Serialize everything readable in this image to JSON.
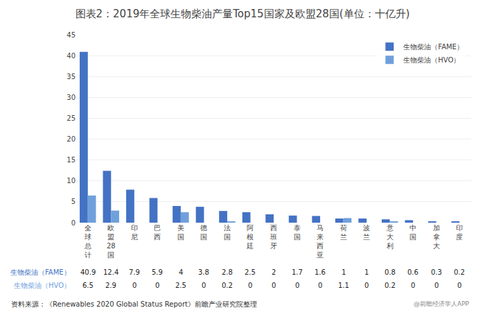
{
  "chart_data": {
    "type": "bar",
    "title": "图表2：2019年全球生物柴油产量Top15国家及欧盟28国(单位：十亿升)",
    "categories": [
      "全\n球\n总\n计",
      "欧\n盟\n28\n国",
      "印\n尼",
      "巴\n西",
      "美\n国",
      "德\n国",
      "法\n国",
      "阿\n根\n廷",
      "西\n班\n牙",
      "泰\n国",
      "马\n来\n西\n亚",
      "荷\n兰",
      "波\n兰",
      "意\n大\n利",
      "中\n国",
      "加\n拿\n大",
      "印\n度"
    ],
    "series": [
      {
        "name": "生物柴油（FAME）",
        "color": "#4472C4",
        "values": [
          40.9,
          12.4,
          7.9,
          5.9,
          4.0,
          3.8,
          2.8,
          2.5,
          2.0,
          1.7,
          1.6,
          1.0,
          1.0,
          0.8,
          0.6,
          0.3,
          0.2
        ],
        "value_labels": [
          "40.9",
          "12.4",
          "7.9",
          "5.9",
          "4",
          "3.8",
          "2.8",
          "2.5",
          "2",
          "1.7",
          "1.6",
          "1",
          "1",
          "0.8",
          "0.6",
          "0.3",
          "0.2"
        ]
      },
      {
        "name": "生物柴油（HVO）",
        "color": "#70A0DC",
        "values": [
          6.5,
          2.9,
          0,
          0,
          2.5,
          0,
          0.2,
          0,
          0,
          0,
          0,
          1.1,
          0,
          0.2,
          0,
          0,
          0
        ],
        "value_labels": [
          "6.5",
          "2.9",
          "0",
          "0",
          "2.5",
          "0",
          "0.2",
          "0",
          "0",
          "0",
          "0",
          "1.1",
          "0",
          "0.2",
          "0",
          "0",
          "0"
        ]
      }
    ],
    "ylim": [
      0,
      45
    ],
    "yticks": [
      0,
      5,
      10,
      15,
      20,
      25,
      30,
      35,
      40,
      45
    ],
    "grid": true,
    "legend": "upper right",
    "data_labels": true,
    "annotations": [
      "资料来源：《Renewables 2020 Global Status Report》前瞻产业研究院整理",
      "@前瞻经济学人APP"
    ]
  }
}
